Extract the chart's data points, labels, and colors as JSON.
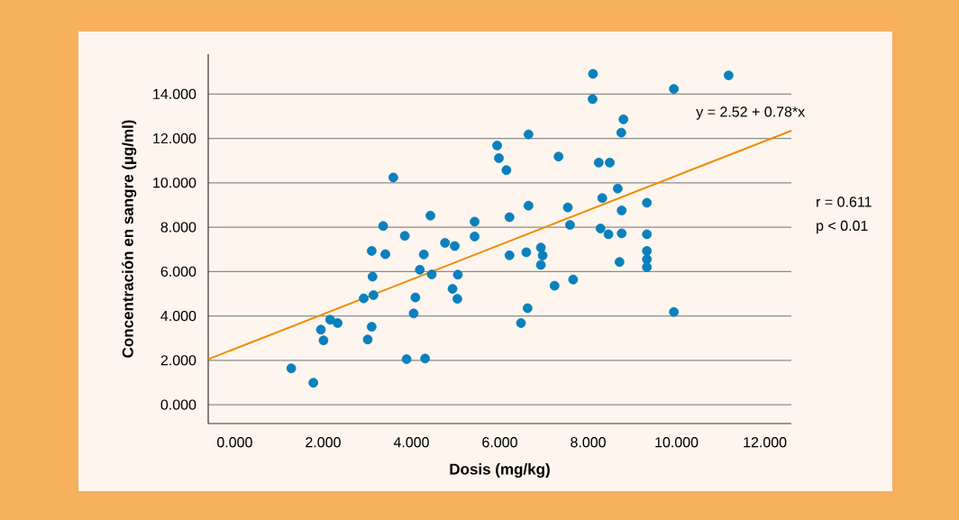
{
  "chart_data": {
    "type": "scatter",
    "xlabel": "Dosis (mg/kg)",
    "ylabel": "Concentración en sangre (µg/ml)",
    "annotations": [
      "y = 2.52 + 0.78*x",
      "r = 0.611",
      "p < 0.01"
    ],
    "xlim": [
      -0.6,
      12.6
    ],
    "ylim": [
      -0.85,
      15.8
    ],
    "xticks": [
      {
        "value": 0,
        "label": "0.000"
      },
      {
        "value": 2,
        "label": "2.000"
      },
      {
        "value": 4,
        "label": "4.000"
      },
      {
        "value": 6,
        "label": "6.000"
      },
      {
        "value": 8,
        "label": "8.000"
      },
      {
        "value": 10,
        "label": "10.000"
      },
      {
        "value": 12,
        "label": "12.000"
      }
    ],
    "yticks": [
      {
        "value": 0,
        "label": "0.000"
      },
      {
        "value": 2,
        "label": "2.000"
      },
      {
        "value": 4,
        "label": "4.000"
      },
      {
        "value": 6,
        "label": "6.000"
      },
      {
        "value": 8,
        "label": "8.000"
      },
      {
        "value": 10,
        "label": "10.000"
      },
      {
        "value": 12,
        "label": "12.000"
      },
      {
        "value": 14,
        "label": "14.000"
      }
    ],
    "grid": "y",
    "series": [
      {
        "color": "#0a80bd",
        "marker": "circle",
        "x": [
          1.28,
          1.78,
          1.95,
          2.01,
          2.16,
          2.33,
          2.92,
          3.01,
          3.1,
          3.14,
          3.12,
          3.1,
          3.36,
          3.41,
          3.59,
          3.85,
          3.89,
          4.05,
          4.09,
          4.19,
          4.28,
          4.31,
          4.43,
          4.46,
          4.76,
          4.98,
          4.93,
          5.05,
          5.04,
          5.43,
          5.43,
          5.94,
          5.98,
          6.15,
          6.22,
          6.22,
          6.65,
          6.65,
          6.6,
          6.63,
          6.48,
          6.93,
          6.97,
          6.93,
          7.33,
          7.24,
          7.54,
          7.59,
          7.66,
          8.11,
          8.1,
          8.24,
          8.49,
          8.32,
          8.28,
          8.46,
          8.67,
          8.76,
          8.76,
          8.71,
          8.8,
          8.75,
          9.33,
          9.33,
          9.33,
          9.33,
          9.33,
          9.94,
          9.94,
          11.18
        ],
        "values": [
          1.64,
          0.99,
          3.38,
          2.9,
          3.83,
          3.68,
          4.79,
          2.94,
          3.51,
          4.94,
          5.77,
          6.93,
          8.05,
          6.78,
          10.24,
          7.61,
          2.05,
          4.11,
          4.83,
          6.08,
          6.77,
          2.08,
          8.52,
          5.87,
          7.29,
          7.15,
          5.22,
          5.86,
          4.77,
          8.25,
          7.58,
          11.68,
          11.11,
          10.57,
          8.45,
          6.73,
          12.18,
          8.97,
          6.87,
          4.35,
          3.68,
          7.08,
          6.72,
          6.3,
          11.18,
          5.36,
          8.89,
          8.1,
          5.64,
          14.91,
          13.77,
          10.91,
          10.91,
          9.31,
          7.94,
          7.68,
          9.74,
          8.75,
          7.72,
          6.43,
          12.86,
          12.26,
          9.1,
          7.68,
          6.93,
          6.55,
          6.2,
          14.23,
          4.18,
          14.84
        ]
      },
      {
        "type": "line",
        "color": "#f08c00",
        "line_style": "solid",
        "marker": "none",
        "x": [
          -0.6,
          12.6
        ],
        "values": [
          2.05,
          12.35
        ]
      }
    ]
  }
}
